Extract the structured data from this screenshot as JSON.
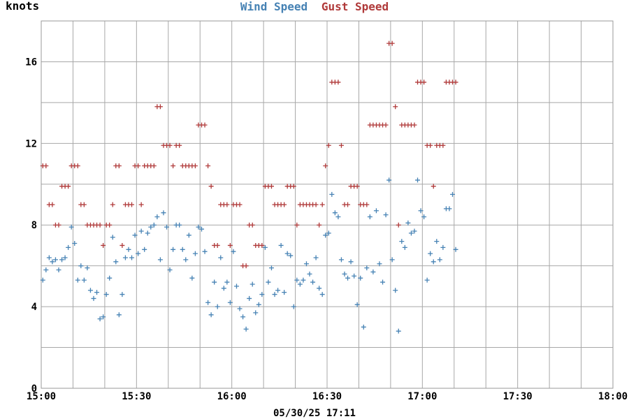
{
  "chart_data": {
    "type": "scatter",
    "title_parts": [
      {
        "text": "Wind Speed",
        "color": "#4682b4"
      },
      {
        "text": "Gust Speed",
        "color": "#b03a3a"
      }
    ],
    "ylabel": "knots",
    "footer": "05/30/25 17:11",
    "x_ticks": [
      "15:00",
      "15:30",
      "16:00",
      "16:30",
      "17:00",
      "17:30",
      "18:00"
    ],
    "x_range_minutes": [
      0,
      180
    ],
    "y_ticks": [
      0,
      4,
      8,
      12,
      16
    ],
    "ylim": [
      0,
      18
    ],
    "grid": true,
    "marker": "+",
    "series": [
      {
        "name": "Wind Speed",
        "color": "#4682b4",
        "points": [
          [
            0.5,
            5.3
          ],
          [
            1.5,
            5.8
          ],
          [
            2.5,
            6.4
          ],
          [
            3.5,
            6.2
          ],
          [
            4.5,
            6.3
          ],
          [
            5.5,
            5.8
          ],
          [
            6.5,
            6.3
          ],
          [
            7.5,
            6.4
          ],
          [
            8.5,
            6.9
          ],
          [
            9.5,
            7.9
          ],
          [
            10.5,
            7.1
          ],
          [
            11.5,
            5.3
          ],
          [
            12.5,
            6.0
          ],
          [
            13.5,
            5.3
          ],
          [
            14.5,
            5.9
          ],
          [
            15.5,
            4.8
          ],
          [
            16.5,
            4.4
          ],
          [
            17.5,
            4.7
          ],
          [
            18.5,
            3.4
          ],
          [
            19.5,
            3.5
          ],
          [
            20.5,
            4.6
          ],
          [
            21.5,
            5.4
          ],
          [
            22.5,
            7.4
          ],
          [
            23.5,
            6.2
          ],
          [
            24.5,
            3.6
          ],
          [
            25.5,
            4.6
          ],
          [
            26.5,
            6.4
          ],
          [
            27.5,
            6.8
          ],
          [
            28.5,
            6.4
          ],
          [
            29.5,
            7.5
          ],
          [
            30.5,
            6.6
          ],
          [
            31.5,
            7.7
          ],
          [
            32.5,
            6.8
          ],
          [
            33.5,
            7.6
          ],
          [
            34.5,
            7.9
          ],
          [
            35.5,
            8.0
          ],
          [
            36.5,
            8.4
          ],
          [
            37.5,
            6.3
          ],
          [
            38.5,
            8.6
          ],
          [
            39.5,
            7.9
          ],
          [
            40.5,
            5.8
          ],
          [
            41.5,
            6.8
          ],
          [
            42.5,
            8.0
          ],
          [
            43.5,
            8.0
          ],
          [
            44.5,
            6.8
          ],
          [
            45.5,
            6.3
          ],
          [
            46.5,
            7.5
          ],
          [
            47.5,
            5.4
          ],
          [
            48.5,
            6.6
          ],
          [
            49.5,
            7.9
          ],
          [
            50.5,
            7.8
          ],
          [
            51.5,
            6.7
          ],
          [
            52.5,
            4.2
          ],
          [
            53.5,
            3.6
          ],
          [
            54.5,
            5.2
          ],
          [
            55.5,
            4.0
          ],
          [
            56.5,
            6.4
          ],
          [
            57.5,
            4.9
          ],
          [
            58.5,
            5.2
          ],
          [
            59.5,
            4.2
          ],
          [
            60.5,
            6.7
          ],
          [
            61.5,
            5.0
          ],
          [
            62.5,
            3.9
          ],
          [
            63.5,
            3.5
          ],
          [
            64.5,
            2.9
          ],
          [
            65.5,
            4.4
          ],
          [
            66.5,
            5.1
          ],
          [
            67.5,
            3.7
          ],
          [
            68.5,
            4.1
          ],
          [
            69.5,
            4.6
          ],
          [
            70.5,
            6.9
          ],
          [
            71.5,
            5.2
          ],
          [
            72.5,
            5.9
          ],
          [
            73.5,
            4.6
          ],
          [
            74.5,
            4.8
          ],
          [
            75.5,
            7.0
          ],
          [
            76.5,
            4.7
          ],
          [
            77.5,
            6.6
          ],
          [
            78.5,
            6.5
          ],
          [
            79.5,
            4.0
          ],
          [
            80.5,
            5.3
          ],
          [
            81.5,
            5.1
          ],
          [
            82.5,
            5.3
          ],
          [
            83.5,
            6.1
          ],
          [
            84.5,
            5.6
          ],
          [
            85.5,
            5.2
          ],
          [
            86.5,
            6.4
          ],
          [
            87.5,
            4.9
          ],
          [
            88.5,
            4.6
          ],
          [
            89.5,
            7.5
          ],
          [
            90.5,
            7.6
          ],
          [
            91.5,
            9.5
          ],
          [
            92.5,
            8.6
          ],
          [
            93.5,
            8.4
          ],
          [
            94.5,
            6.3
          ],
          [
            95.5,
            5.6
          ],
          [
            96.5,
            5.4
          ],
          [
            97.5,
            6.2
          ],
          [
            98.5,
            5.5
          ],
          [
            99.5,
            4.1
          ],
          [
            100.5,
            5.4
          ],
          [
            101.5,
            3.0
          ],
          [
            102.5,
            5.9
          ],
          [
            103.5,
            8.4
          ],
          [
            104.5,
            5.7
          ],
          [
            105.5,
            8.7
          ],
          [
            106.5,
            6.1
          ],
          [
            107.5,
            5.2
          ],
          [
            108.5,
            8.5
          ],
          [
            109.5,
            10.2
          ],
          [
            110.5,
            6.3
          ],
          [
            111.5,
            4.8
          ],
          [
            112.5,
            2.8
          ],
          [
            113.5,
            7.2
          ],
          [
            114.5,
            6.9
          ],
          [
            115.5,
            8.1
          ],
          [
            116.5,
            7.6
          ],
          [
            117.5,
            7.7
          ],
          [
            118.5,
            10.2
          ],
          [
            119.5,
            8.7
          ],
          [
            120.5,
            8.4
          ],
          [
            121.5,
            5.3
          ],
          [
            122.5,
            6.6
          ],
          [
            123.5,
            6.2
          ],
          [
            124.5,
            7.2
          ],
          [
            125.5,
            6.3
          ],
          [
            126.5,
            6.9
          ],
          [
            127.5,
            8.8
          ],
          [
            128.5,
            8.8
          ],
          [
            129.5,
            9.5
          ],
          [
            130.5,
            6.8
          ]
        ]
      },
      {
        "name": "Gust Speed",
        "color": "#b03a3a",
        "points": [
          [
            0.5,
            10.9
          ],
          [
            1.5,
            10.9
          ],
          [
            2.5,
            9.0
          ],
          [
            3.5,
            9.0
          ],
          [
            4.5,
            8.0
          ],
          [
            5.5,
            8.0
          ],
          [
            6.5,
            9.9
          ],
          [
            7.5,
            9.9
          ],
          [
            8.5,
            9.9
          ],
          [
            9.5,
            10.9
          ],
          [
            10.5,
            10.9
          ],
          [
            11.5,
            10.9
          ],
          [
            12.5,
            9.0
          ],
          [
            13.5,
            9.0
          ],
          [
            14.5,
            8.0
          ],
          [
            15.5,
            8.0
          ],
          [
            16.5,
            8.0
          ],
          [
            17.5,
            8.0
          ],
          [
            18.5,
            8.0
          ],
          [
            19.5,
            7.0
          ],
          [
            20.5,
            8.0
          ],
          [
            21.5,
            8.0
          ],
          [
            22.5,
            9.0
          ],
          [
            23.5,
            10.9
          ],
          [
            24.5,
            10.9
          ],
          [
            25.5,
            7.0
          ],
          [
            26.5,
            9.0
          ],
          [
            27.5,
            9.0
          ],
          [
            28.5,
            9.0
          ],
          [
            29.5,
            10.9
          ],
          [
            30.5,
            10.9
          ],
          [
            31.5,
            9.0
          ],
          [
            32.5,
            10.9
          ],
          [
            33.5,
            10.9
          ],
          [
            34.5,
            10.9
          ],
          [
            35.5,
            10.9
          ],
          [
            36.5,
            13.8
          ],
          [
            37.5,
            13.8
          ],
          [
            38.5,
            11.9
          ],
          [
            39.5,
            11.9
          ],
          [
            40.5,
            11.9
          ],
          [
            41.5,
            10.9
          ],
          [
            42.5,
            11.9
          ],
          [
            43.5,
            11.9
          ],
          [
            44.5,
            10.9
          ],
          [
            45.5,
            10.9
          ],
          [
            46.5,
            10.9
          ],
          [
            47.5,
            10.9
          ],
          [
            48.5,
            10.9
          ],
          [
            49.5,
            12.9
          ],
          [
            50.5,
            12.9
          ],
          [
            51.5,
            12.9
          ],
          [
            52.5,
            10.9
          ],
          [
            53.5,
            9.9
          ],
          [
            54.5,
            7.0
          ],
          [
            55.5,
            7.0
          ],
          [
            56.5,
            9.0
          ],
          [
            57.5,
            9.0
          ],
          [
            58.5,
            9.0
          ],
          [
            59.5,
            7.0
          ],
          [
            60.5,
            9.0
          ],
          [
            61.5,
            9.0
          ],
          [
            62.5,
            9.0
          ],
          [
            63.5,
            6.0
          ],
          [
            64.5,
            6.0
          ],
          [
            65.5,
            8.0
          ],
          [
            66.5,
            8.0
          ],
          [
            67.5,
            7.0
          ],
          [
            68.5,
            7.0
          ],
          [
            69.5,
            7.0
          ],
          [
            70.5,
            9.9
          ],
          [
            71.5,
            9.9
          ],
          [
            72.5,
            9.9
          ],
          [
            73.5,
            9.0
          ],
          [
            74.5,
            9.0
          ],
          [
            75.5,
            9.0
          ],
          [
            76.5,
            9.0
          ],
          [
            77.5,
            9.9
          ],
          [
            78.5,
            9.9
          ],
          [
            79.5,
            9.9
          ],
          [
            80.5,
            8.0
          ],
          [
            81.5,
            9.0
          ],
          [
            82.5,
            9.0
          ],
          [
            83.5,
            9.0
          ],
          [
            84.5,
            9.0
          ],
          [
            85.5,
            9.0
          ],
          [
            86.5,
            9.0
          ],
          [
            87.5,
            8.0
          ],
          [
            88.5,
            9.0
          ],
          [
            89.5,
            10.9
          ],
          [
            90.5,
            11.9
          ],
          [
            91.5,
            15.0
          ],
          [
            92.5,
            15.0
          ],
          [
            93.5,
            15.0
          ],
          [
            94.5,
            11.9
          ],
          [
            95.5,
            9.0
          ],
          [
            96.5,
            9.0
          ],
          [
            97.5,
            9.9
          ],
          [
            98.5,
            9.9
          ],
          [
            99.5,
            9.9
          ],
          [
            100.5,
            9.0
          ],
          [
            101.5,
            9.0
          ],
          [
            102.5,
            9.0
          ],
          [
            103.5,
            12.9
          ],
          [
            104.5,
            12.9
          ],
          [
            105.5,
            12.9
          ],
          [
            106.5,
            12.9
          ],
          [
            107.5,
            12.9
          ],
          [
            108.5,
            12.9
          ],
          [
            109.5,
            16.9
          ],
          [
            110.5,
            16.9
          ],
          [
            111.5,
            13.8
          ],
          [
            112.5,
            8.0
          ],
          [
            113.5,
            12.9
          ],
          [
            114.5,
            12.9
          ],
          [
            115.5,
            12.9
          ],
          [
            116.5,
            12.9
          ],
          [
            117.5,
            12.9
          ],
          [
            118.5,
            15.0
          ],
          [
            119.5,
            15.0
          ],
          [
            120.5,
            15.0
          ],
          [
            121.5,
            11.9
          ],
          [
            122.5,
            11.9
          ],
          [
            123.5,
            9.9
          ],
          [
            124.5,
            11.9
          ],
          [
            125.5,
            11.9
          ],
          [
            126.5,
            11.9
          ],
          [
            127.5,
            15.0
          ],
          [
            128.5,
            15.0
          ],
          [
            129.5,
            15.0
          ],
          [
            130.5,
            15.0
          ]
        ]
      }
    ]
  }
}
